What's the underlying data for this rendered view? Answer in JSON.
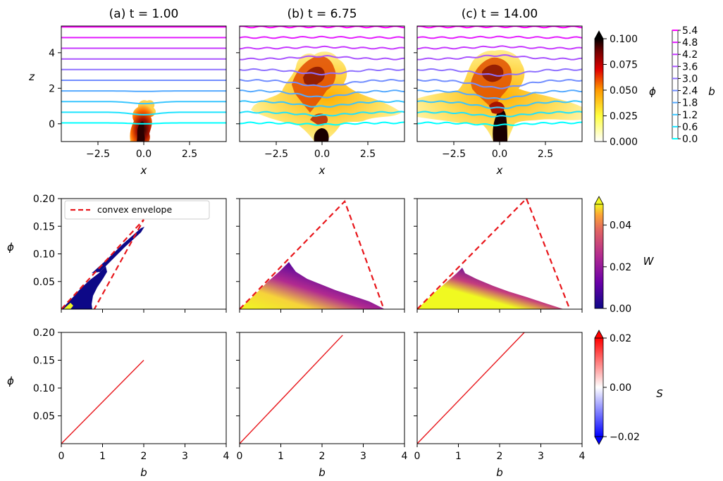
{
  "row1": {
    "panels": [
      {
        "title": "(a) t = 1.00",
        "t": 1.0
      },
      {
        "title": "(b) t = 6.75",
        "t": 6.75
      },
      {
        "title": "(c) t = 14.00",
        "t": 14.0
      }
    ],
    "xlabel": "x",
    "ylabel": "z",
    "xlim": [
      -4.5,
      4.5
    ],
    "ylim": [
      -1.0,
      5.5
    ],
    "xticks": [
      "−2.5",
      "0.0",
      "2.5"
    ],
    "xtick_values": [
      -2.5,
      0.0,
      2.5
    ],
    "yticks": [
      "0",
      "2",
      "4"
    ],
    "ytick_values": [
      0,
      2,
      4
    ],
    "contour_levels": [
      0.0,
      0.6,
      1.2,
      1.8,
      2.4,
      3.0,
      3.6,
      4.2,
      4.8,
      5.4
    ],
    "colorbar_phi": {
      "label": "ϕ",
      "ticks": [
        "0.000",
        "0.025",
        "0.050",
        "0.075",
        "0.100"
      ],
      "tick_values": [
        0.0,
        0.025,
        0.05,
        0.075,
        0.1
      ],
      "colormap": "hot_r",
      "extend": "max"
    },
    "colorbar_b": {
      "label": "b",
      "ticks": [
        "0.0",
        "0.6",
        "1.2",
        "1.8",
        "2.4",
        "3.0",
        "3.6",
        "4.2",
        "4.8",
        "5.4"
      ],
      "colormap": "cool"
    }
  },
  "row2": {
    "xlabel": "b",
    "ylabel": "ϕ",
    "xlim": [
      0,
      4
    ],
    "ylim": [
      0,
      0.2
    ],
    "yticks": [
      "0.05",
      "0.10",
      "0.15",
      "0.20"
    ],
    "ytick_values": [
      0.05,
      0.1,
      0.15,
      0.2
    ],
    "legend": "convex envelope",
    "envelope_color": "#e8161b",
    "panels": [
      {
        "envelope": [
          [
            0.0,
            0.0
          ],
          [
            2.0,
            0.162
          ],
          [
            0.8,
            0.0
          ]
        ]
      },
      {
        "envelope": [
          [
            0.0,
            0.0
          ],
          [
            2.55,
            0.195
          ],
          [
            3.5,
            0.0
          ]
        ]
      },
      {
        "envelope": [
          [
            0.0,
            0.0
          ],
          [
            2.65,
            0.2
          ],
          [
            3.7,
            0.0
          ]
        ]
      }
    ],
    "colorbar_W": {
      "label": "W",
      "ticks": [
        "0.00",
        "0.02",
        "0.04"
      ],
      "tick_values": [
        0.0,
        0.02,
        0.04
      ],
      "max": 0.05,
      "colormap": "plasma",
      "extend": "max"
    }
  },
  "row3": {
    "xlabel": "b",
    "ylabel": "ϕ",
    "xlim": [
      0,
      4
    ],
    "ylim": [
      0,
      0.2
    ],
    "xticks": [
      "0",
      "1",
      "2",
      "3",
      "4"
    ],
    "xtick_values": [
      0,
      1,
      2,
      3,
      4
    ],
    "yticks": [
      "0.05",
      "0.10",
      "0.15",
      "0.20"
    ],
    "ytick_values": [
      0.05,
      0.1,
      0.15,
      0.2
    ],
    "panels": [
      {
        "line_end": [
          2.0,
          0.15
        ]
      },
      {
        "line_end": [
          2.5,
          0.195
        ]
      },
      {
        "line_end": [
          2.6,
          0.2
        ]
      }
    ],
    "colorbar_S": {
      "label": "S",
      "ticks": [
        "−0.02",
        "0.00",
        "0.02"
      ],
      "tick_values": [
        -0.02,
        0.0,
        0.02
      ],
      "colormap": "bwr",
      "extend": "both"
    }
  }
}
